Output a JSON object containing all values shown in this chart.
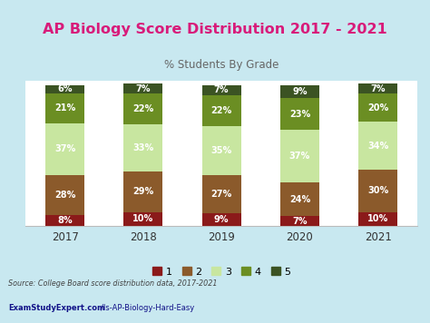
{
  "title": "AP Biology Score Distribution 2017 - 2021",
  "subtitle": "% Students By Grade",
  "years": [
    "2017",
    "2018",
    "2019",
    "2020",
    "2021"
  ],
  "scores": {
    "1": [
      8,
      10,
      9,
      7,
      10
    ],
    "2": [
      28,
      29,
      27,
      24,
      30
    ],
    "3": [
      37,
      33,
      35,
      37,
      34
    ],
    "4": [
      21,
      22,
      22,
      23,
      20
    ],
    "5": [
      6,
      7,
      7,
      9,
      7
    ]
  },
  "colors": {
    "1": "#8B1A1A",
    "2": "#8B5A2B",
    "3": "#C8E6A0",
    "4": "#6B8E23",
    "5": "#3B5323"
  },
  "title_bg": "#CBF0F8",
  "title_border": "#E8389A",
  "title_color": "#D81B7A",
  "chart_bg": "#F8F8F8",
  "chart_border": "#CCCCCC",
  "footer_bg": "#C8E8F0",
  "source_text": "Source: College Board score distribution data, 2017-2021",
  "url_bold": "ExamStudyExpert.com",
  "url_regular": "/Is-AP-Biology-Hard-Easy",
  "bar_width": 0.5,
  "score_keys": [
    "1",
    "2",
    "3",
    "4",
    "5"
  ]
}
